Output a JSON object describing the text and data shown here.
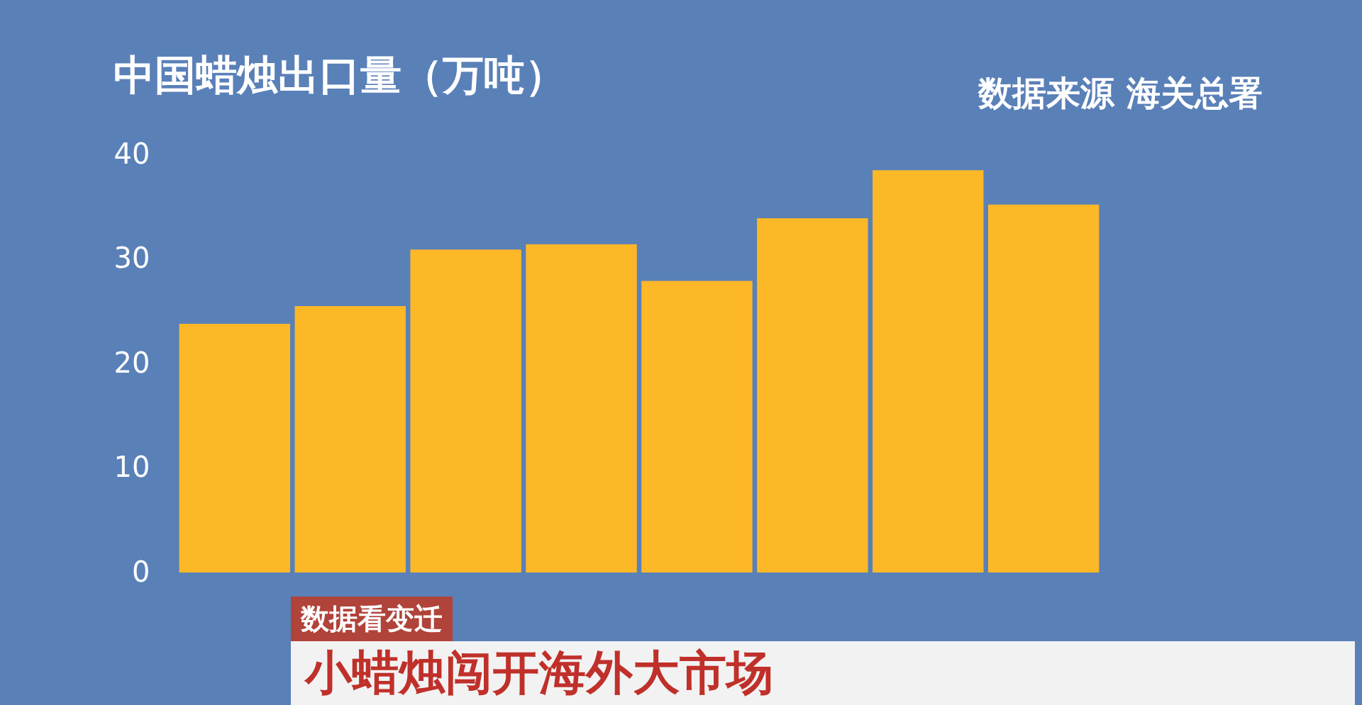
{
  "chart_data": {
    "type": "bar",
    "title": "中国蜡烛出口量（万吨）",
    "categories": [
      null,
      null,
      null,
      null,
      null,
      null,
      null,
      null
    ],
    "values": [
      23.8,
      25.5,
      30.9,
      31.4,
      27.9,
      33.9,
      38.5,
      35.2
    ],
    "color": "#fdb827",
    "ylim": [
      0,
      40
    ],
    "yticks": [
      0,
      10,
      20,
      30,
      40
    ],
    "grid": false,
    "annotations": [
      "数据来源  海关总署",
      "数据看变迁",
      "小蜡烛闯开海外大市场"
    ]
  }
}
